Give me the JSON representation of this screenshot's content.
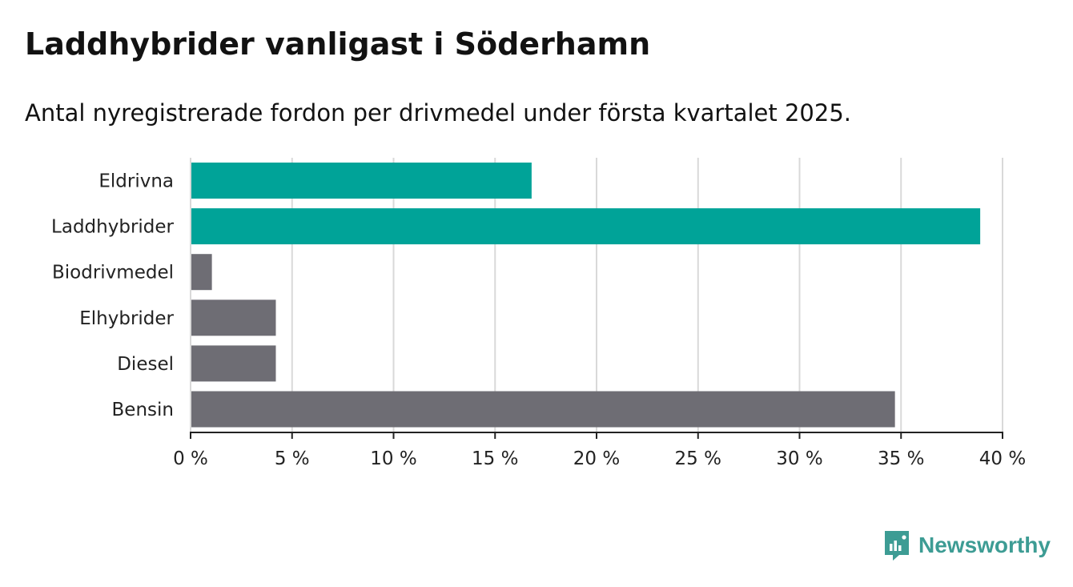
{
  "title": "Laddhybrider vanligast i Söderhamn",
  "subtitle": "Antal nyregistrerade fordon per drivmedel under första kvartalet 2025.",
  "logo": {
    "text": "Newsworthy",
    "icon": "newsworthy-logo-icon"
  },
  "colors": {
    "highlight": "#00a398",
    "default": "#6e6d74",
    "grid": "#d9d9d9",
    "axis": "#222222",
    "logo": "#3d9c94"
  },
  "chart_data": {
    "type": "bar",
    "orientation": "horizontal",
    "categories": [
      "Eldrivna",
      "Laddhybrider",
      "Biodrivmedel",
      "Elhybrider",
      "Diesel",
      "Bensin"
    ],
    "values": [
      16.8,
      38.9,
      1.05,
      4.2,
      4.2,
      34.7
    ],
    "highlighted": [
      "Eldrivna",
      "Laddhybrider"
    ],
    "xlim": [
      0,
      40
    ],
    "ticks": [
      0,
      5,
      10,
      15,
      20,
      25,
      30,
      35,
      40
    ],
    "tick_labels": [
      "0 %",
      "5 %",
      "10 %",
      "15 %",
      "20 %",
      "25 %",
      "30 %",
      "35 %",
      "40 %"
    ],
    "grid": true,
    "xlabel": "",
    "ylabel": ""
  }
}
